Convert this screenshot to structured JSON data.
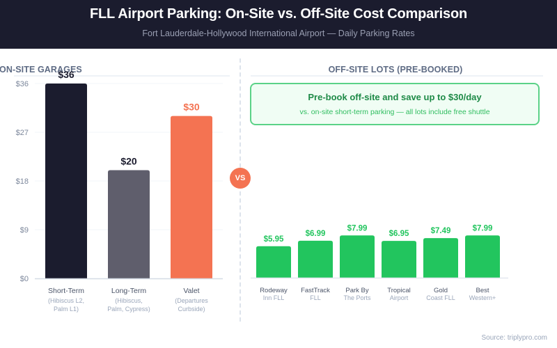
{
  "header": {
    "title": "FLL Airport Parking: On-Site vs. Off-Site Cost Comparison",
    "subtitle": "Fort Lauderdale-Hollywood International Airport — Daily Parking Rates"
  },
  "vs_badge": "VS",
  "callout": {
    "headline": "Pre-book off-site and save up to $30/day",
    "sub": "vs. on-site short-term parking — all lots include free shuttle"
  },
  "source": "Source: triplypro.com",
  "colors": {
    "header_bg": "#1b1c2e",
    "short_term": "#1b1c2e",
    "long_term": "#5f5e6c",
    "valet": "#f47352",
    "offsite": "#22c55e",
    "section_title": "#5e6b84"
  },
  "chart_data": [
    {
      "type": "bar",
      "title": "ON-SITE GARAGES",
      "xlabel": "",
      "ylabel": "",
      "ylim": [
        0,
        36
      ],
      "yticks": [
        0,
        9,
        18,
        27,
        36
      ],
      "ytick_labels": [
        "$0",
        "$9",
        "$18",
        "$27",
        "$36"
      ],
      "grid": true,
      "categories": [
        "Short-Term",
        "Long-Term",
        "Valet"
      ],
      "sublabels": [
        [
          "(Hibiscus L2,",
          "Palm L1)"
        ],
        [
          "(Hibiscus,",
          "Palm, Cypress)"
        ],
        [
          "(Departures",
          "Curbside)"
        ]
      ],
      "values": [
        36,
        20,
        30
      ],
      "value_labels": [
        "$36",
        "$20",
        "$30"
      ],
      "bar_colors": [
        "#1b1c2e",
        "#5f5e6c",
        "#f47352"
      ],
      "label_colors": [
        "#1b1c2e",
        "#1b1c2e",
        "#f47352"
      ]
    },
    {
      "type": "bar",
      "title": "OFF-SITE LOTS (PRE-BOOKED)",
      "xlabel": "",
      "ylabel": "",
      "ylim": [
        0,
        36
      ],
      "grid": false,
      "categories": [
        "Rodeway",
        "FastTrack",
        "Park By",
        "Tropical",
        "Gold",
        "Best"
      ],
      "sublabels": [
        "Inn FLL",
        "FLL",
        "The Ports",
        "Airport",
        "Coast FLL",
        "Western+"
      ],
      "values": [
        5.95,
        6.99,
        7.99,
        6.95,
        7.49,
        7.99
      ],
      "value_labels": [
        "$5.95",
        "$6.99",
        "$7.99",
        "$6.95",
        "$7.49",
        "$7.99"
      ],
      "bar_color": "#22c55e",
      "label_color": "#22c55e"
    }
  ]
}
